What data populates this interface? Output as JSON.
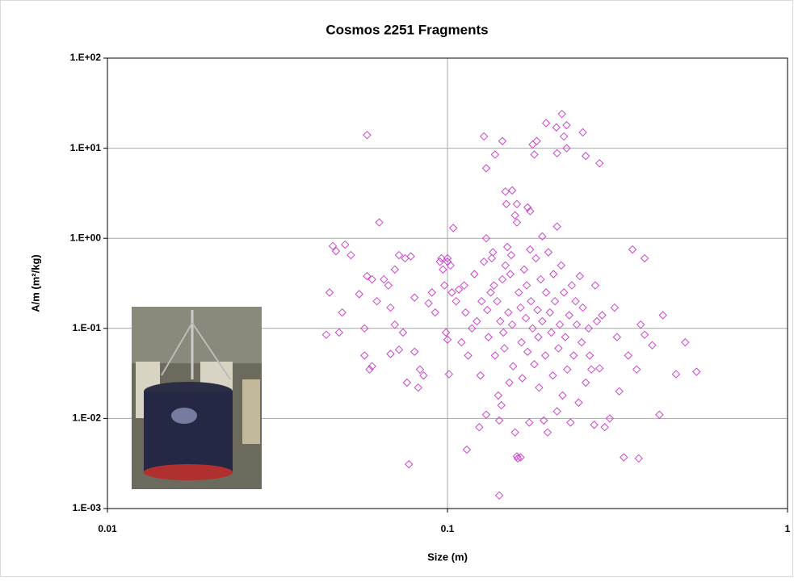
{
  "chart_data": {
    "type": "scatter",
    "title": "Cosmos 2251 Fragments",
    "x_label": "Size (m)",
    "y_label": "A/m (m²/kg)",
    "xscale": "log",
    "yscale": "log",
    "grid": true,
    "color": "#cc44cc",
    "marker": "diamond",
    "xlim": [
      0.01,
      1
    ],
    "xticks": [
      0.01,
      0.1,
      1
    ],
    "ylim": [
      0.001,
      100
    ],
    "yticks": [
      {
        "value": 0.001,
        "label": "1.E-03"
      },
      {
        "value": 0.01,
        "label": "1.E-02"
      },
      {
        "value": 0.1,
        "label": "1.E-01"
      },
      {
        "value": 1,
        "label": "1.E+00"
      },
      {
        "value": 10,
        "label": "1.E+01"
      },
      {
        "value": 100,
        "label": "1.E+02"
      }
    ],
    "x": [
      0.058,
      0.217,
      0.195,
      0.209,
      0.224,
      0.22,
      0.183,
      0.178,
      0.145,
      0.128,
      0.138,
      0.18,
      0.21,
      0.224,
      0.25,
      0.255,
      0.28,
      0.13,
      0.148,
      0.155,
      0.16,
      0.172,
      0.175,
      0.158,
      0.16,
      0.149,
      0.21,
      0.104,
      0.063,
      0.19,
      0.13,
      0.046,
      0.047,
      0.05,
      0.052,
      0.045,
      0.049,
      0.044,
      0.048,
      0.055,
      0.058,
      0.06,
      0.057,
      0.059,
      0.06,
      0.057,
      0.062,
      0.065,
      0.067,
      0.07,
      0.072,
      0.075,
      0.078,
      0.068,
      0.07,
      0.074,
      0.072,
      0.068,
      0.08,
      0.08,
      0.076,
      0.083,
      0.082,
      0.085,
      0.088,
      0.09,
      0.092,
      0.095,
      0.096,
      0.097,
      0.1,
      0.1,
      0.102,
      0.098,
      0.099,
      0.101,
      0.1,
      0.103,
      0.106,
      0.108,
      0.11,
      0.112,
      0.113,
      0.115,
      0.114,
      0.118,
      0.12,
      0.122,
      0.124,
      0.125,
      0.126,
      0.128,
      0.13,
      0.131,
      0.132,
      0.134,
      0.135,
      0.136,
      0.137,
      0.138,
      0.14,
      0.141,
      0.142,
      0.143,
      0.144,
      0.145,
      0.146,
      0.147,
      0.148,
      0.15,
      0.151,
      0.152,
      0.153,
      0.154,
      0.155,
      0.156,
      0.158,
      0.16,
      0.161,
      0.162,
      0.164,
      0.165,
      0.166,
      0.168,
      0.17,
      0.171,
      0.172,
      0.174,
      0.175,
      0.176,
      0.178,
      0.18,
      0.182,
      0.184,
      0.185,
      0.186,
      0.188,
      0.19,
      0.192,
      0.194,
      0.195,
      0.197,
      0.198,
      0.2,
      0.202,
      0.204,
      0.205,
      0.207,
      0.21,
      0.212,
      0.214,
      0.216,
      0.218,
      0.22,
      0.222,
      0.225,
      0.228,
      0.23,
      0.232,
      0.235,
      0.238,
      0.24,
      0.243,
      0.245,
      0.248,
      0.25,
      0.255,
      0.26,
      0.262,
      0.265,
      0.27,
      0.272,
      0.275,
      0.28,
      0.285,
      0.29,
      0.3,
      0.31,
      0.315,
      0.32,
      0.33,
      0.34,
      0.35,
      0.36,
      0.365,
      0.37,
      0.38,
      0.38,
      0.4,
      0.42,
      0.43,
      0.47,
      0.5,
      0.54,
      0.142,
      0.077,
      0.164
    ],
    "values": [
      14,
      24,
      19,
      17,
      18,
      13.5,
      12,
      11,
      12,
      13.5,
      8.5,
      8.5,
      8.8,
      10,
      15,
      8.2,
      6.8,
      6,
      3.3,
      3.4,
      2.4,
      2.2,
      2,
      1.8,
      1.5,
      2.4,
      1.35,
      1.3,
      1.5,
      1.05,
      1,
      0.82,
      0.72,
      0.85,
      0.65,
      0.25,
      0.15,
      0.085,
      0.09,
      0.24,
      0.38,
      0.35,
      0.05,
      0.035,
      0.038,
      0.1,
      0.2,
      0.35,
      0.3,
      0.45,
      0.65,
      0.6,
      0.63,
      0.17,
      0.11,
      0.09,
      0.058,
      0.052,
      0.055,
      0.22,
      0.025,
      0.035,
      0.022,
      0.03,
      0.19,
      0.25,
      0.15,
      0.55,
      0.6,
      0.45,
      0.6,
      0.55,
      0.5,
      0.3,
      0.09,
      0.031,
      0.075,
      0.25,
      0.2,
      0.27,
      0.07,
      0.3,
      0.15,
      0.05,
      0.0045,
      0.1,
      0.4,
      0.12,
      0.008,
      0.03,
      0.2,
      0.55,
      0.011,
      0.16,
      0.08,
      0.25,
      0.6,
      0.7,
      0.3,
      0.05,
      0.2,
      0.018,
      0.0095,
      0.12,
      0.014,
      0.35,
      0.09,
      0.06,
      0.5,
      0.8,
      0.15,
      0.025,
      0.4,
      0.65,
      0.11,
      0.038,
      0.007,
      0.0038,
      0.0036,
      0.25,
      0.17,
      0.07,
      0.028,
      0.45,
      0.13,
      0.3,
      0.055,
      0.009,
      0.75,
      0.2,
      0.1,
      0.04,
      0.6,
      0.16,
      0.08,
      0.022,
      0.35,
      0.12,
      0.0095,
      0.05,
      0.25,
      0.007,
      0.7,
      0.15,
      0.09,
      0.03,
      0.4,
      0.2,
      0.012,
      0.06,
      0.11,
      0.5,
      0.018,
      0.25,
      0.08,
      0.035,
      0.14,
      0.009,
      0.3,
      0.05,
      0.2,
      0.11,
      0.015,
      0.38,
      0.07,
      0.17,
      0.025,
      0.1,
      0.05,
      0.035,
      0.0085,
      0.3,
      0.12,
      0.036,
      0.14,
      0.008,
      0.01,
      0.17,
      0.08,
      0.02,
      0.0037,
      0.05,
      0.75,
      0.035,
      0.0036,
      0.11,
      0.6,
      0.085,
      0.065,
      0.011,
      0.14,
      0.031,
      0.07,
      0.033,
      0.0014,
      0.0031,
      0.0037
    ]
  }
}
